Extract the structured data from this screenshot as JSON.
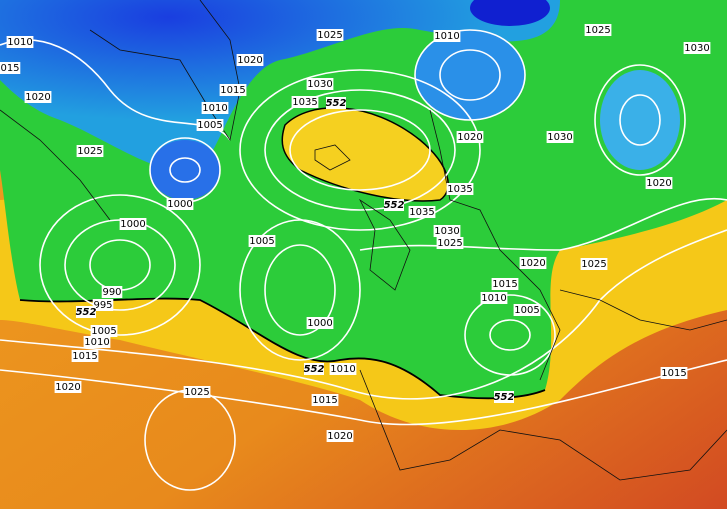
{
  "isobar_labels": [
    "1010",
    "015",
    "1020",
    "1025",
    "1000",
    "1000",
    "990",
    "995",
    "1005",
    "1010",
    "1015",
    "1020",
    "1025",
    "1020",
    "1015",
    "1010",
    "1005",
    "1025",
    "1030",
    "1035",
    "1005",
    "1000",
    "1010",
    "1015",
    "1020",
    "1010",
    "1020",
    "1035",
    "1035",
    "1030",
    "1025",
    "1030",
    "1025",
    "1030",
    "1020",
    "1020",
    "1025",
    "1015",
    "1010",
    "1005",
    "1015"
  ],
  "thickness_labels": [
    "552",
    "552",
    "552",
    "552",
    "552"
  ]
}
